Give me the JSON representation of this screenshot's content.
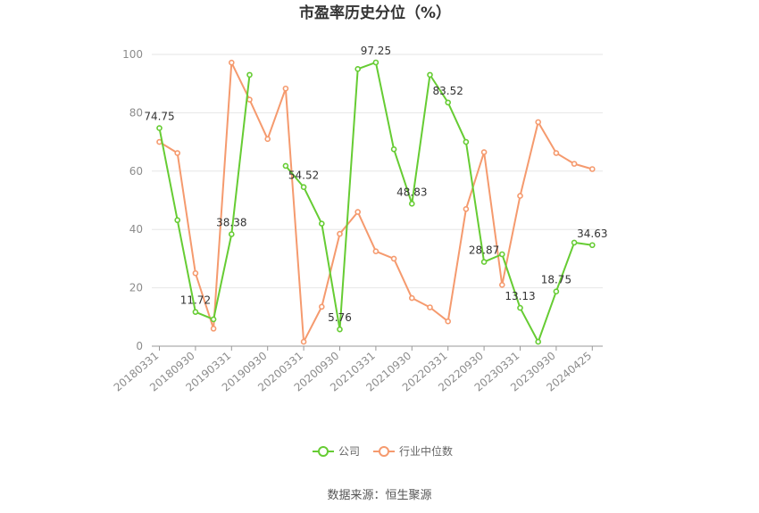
{
  "chart_data": {
    "type": "line",
    "title": "市盈率历史分位（%）",
    "ylim": [
      0,
      100
    ],
    "yticks": [
      0,
      20,
      40,
      60,
      80,
      100
    ],
    "grid": true,
    "legend_position": "bottom-center",
    "x_tick_labels": [
      "20180331",
      "20180930",
      "20190331",
      "20190930",
      "20200331",
      "20200930",
      "20210331",
      "20210930",
      "20220331",
      "20220930",
      "20230331",
      "20230930",
      "20240425"
    ],
    "x": [
      "20180331",
      "20180630",
      "20180930",
      "20181231",
      "20190331",
      "20190630",
      "20190930",
      "20191231",
      "20200331",
      "20200630",
      "20200930",
      "20201231",
      "20210331",
      "20210630",
      "20210930",
      "20211231",
      "20220331",
      "20220630",
      "20220930",
      "20221231",
      "20230331",
      "20230630",
      "20230930",
      "20231231",
      "20240425"
    ],
    "series": [
      {
        "name": "公司",
        "color": "#66cc33",
        "values": [
          74.75,
          43.2,
          11.72,
          9.2,
          38.38,
          93.0,
          null,
          61.8,
          54.52,
          42.0,
          5.76,
          95.0,
          97.25,
          67.5,
          48.83,
          93.0,
          83.52,
          70.0,
          28.87,
          31.5,
          13.13,
          1.5,
          18.75,
          35.5,
          34.63
        ],
        "data_labels": {
          "0": "74.75",
          "2": "11.72",
          "4": "38.38",
          "8": "54.52",
          "10": "5.76",
          "12": "97.25",
          "14": "48.83",
          "16": "83.52",
          "18": "28.87",
          "20": "13.13",
          "22": "18.75",
          "24": "34.63"
        }
      },
      {
        "name": "行业中位数",
        "color": "#f59a6e",
        "values": [
          70.0,
          66.2,
          25.0,
          6.0,
          97.2,
          84.5,
          71.0,
          88.3,
          1.5,
          13.5,
          38.5,
          46.0,
          32.5,
          30.0,
          16.5,
          13.3,
          8.5,
          47.0,
          66.5,
          21.0,
          51.5,
          76.8,
          66.2,
          62.5,
          60.7
        ]
      }
    ]
  },
  "footer": {
    "source": "数据来源：恒生聚源"
  }
}
